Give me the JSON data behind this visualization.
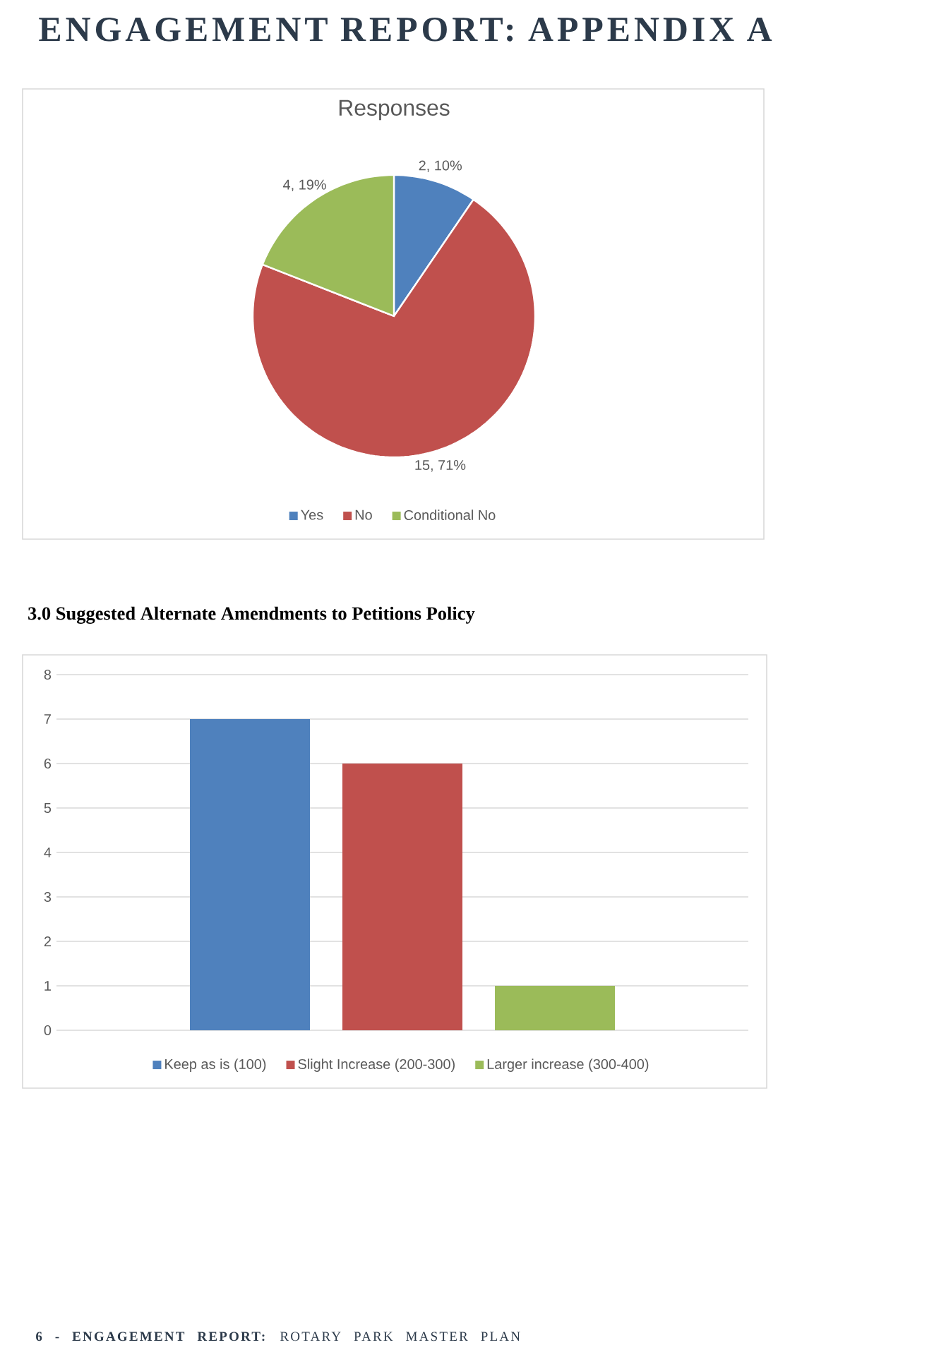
{
  "chart_data": [
    {
      "type": "pie",
      "title": "Responses",
      "categories": [
        "Yes",
        "No",
        "Conditional No"
      ],
      "values": [
        2,
        15,
        4
      ],
      "colors": [
        "#4f81bd",
        "#c0504d",
        "#9bbb59"
      ],
      "value_labels": [
        "2, 10%",
        "15, 71%",
        "4, 19%"
      ],
      "legend": "bottom",
      "annotations": [
        "ENGAGEMENT REPORT: APPENDIX A"
      ]
    },
    {
      "type": "bar",
      "title": "3.0 Suggested Alternate Amendments to Petitions Policy",
      "categories": [
        null
      ],
      "series": [
        {
          "name": "Keep as is (100)",
          "color": "#4f81bd",
          "values": [
            7
          ]
        },
        {
          "name": "Slight Increase (200-300)",
          "color": "#c0504d",
          "values": [
            6
          ]
        },
        {
          "name": "Larger increase (300-400)",
          "color": "#9bbb59",
          "values": [
            1
          ]
        }
      ],
      "ylim": [
        0,
        8
      ],
      "yticks": [
        0,
        1,
        2,
        3,
        4,
        5,
        6,
        7,
        8
      ],
      "grid": "y",
      "legend": "bottom",
      "annotations": [
        "**6 - ENGAGEMENT REPORT:** ROTARY PARK MASTER PLAN"
      ]
    }
  ]
}
